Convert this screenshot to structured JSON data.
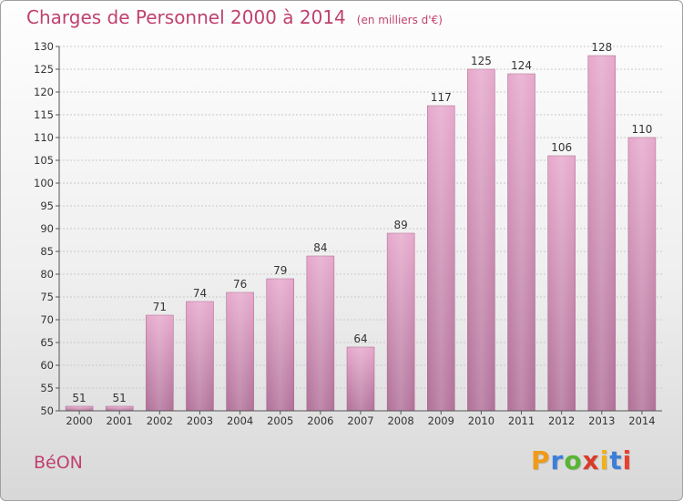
{
  "title": {
    "main": "Charges de Personnel 2000 à 2014",
    "unit": "(en milliers d'€)"
  },
  "place_name": "BéON",
  "logo": {
    "text": "Proxiti",
    "letter_colors": [
      "#f09a1a",
      "#3d7fd8",
      "#59b534",
      "#d93b2b",
      "#f2b01a",
      "#3d7fd8",
      "#e8412f"
    ]
  },
  "colors": {
    "accent": "#c0416f",
    "bar_top": "#e6a8cc",
    "bar_bottom": "#b07098"
  },
  "chart_data": {
    "type": "bar",
    "categories": [
      "2000",
      "2001",
      "2002",
      "2003",
      "2004",
      "2005",
      "2006",
      "2007",
      "2008",
      "2009",
      "2010",
      "2011",
      "2012",
      "2013",
      "2014"
    ],
    "values": [
      51,
      51,
      71,
      74,
      76,
      79,
      84,
      64,
      89,
      117,
      125,
      124,
      106,
      128,
      110
    ],
    "title": "Charges de Personnel 2000 à 2014",
    "xlabel": "",
    "ylabel": "",
    "ylim": [
      50,
      130
    ],
    "yticks": [
      50,
      55,
      60,
      65,
      70,
      75,
      80,
      85,
      90,
      95,
      100,
      105,
      110,
      115,
      120,
      125,
      130
    ],
    "grid": true
  }
}
